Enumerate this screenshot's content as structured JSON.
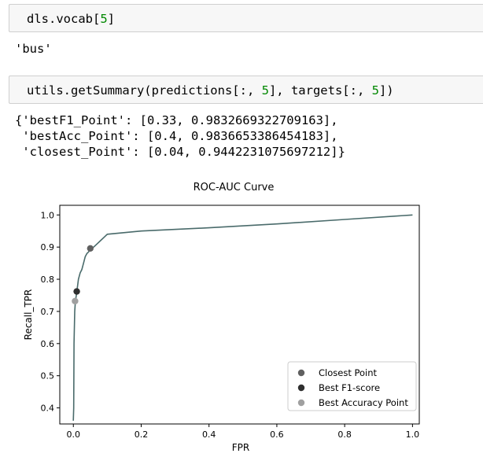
{
  "cells": [
    {
      "input_parts": [
        "dls.vocab[",
        "5",
        "]"
      ],
      "output": "'bus'"
    },
    {
      "input_parts": [
        "utils.getSummary(predictions[:, ",
        "5",
        "], targets[:, ",
        "5",
        "])"
      ],
      "output_lines": [
        "{'bestF1_Point': [0.33, 0.9832669322709163],",
        " 'bestAcc_Point': [0.4, 0.9836653386454183],",
        " 'closest_Point': [0.04, 0.9442231075697212]}"
      ]
    }
  ],
  "chart_data": {
    "type": "line",
    "title": "ROC-AUC Curve",
    "xlabel": "FPR",
    "ylabel": "Recall_TPR",
    "xlim": [
      -0.04,
      1.02
    ],
    "ylim": [
      0.35,
      1.03
    ],
    "xticks": [
      "0.0",
      "0.2",
      "0.4",
      "0.6",
      "0.8",
      "1.0"
    ],
    "yticks": [
      "0.4",
      "0.5",
      "0.6",
      "0.7",
      "0.8",
      "0.9",
      "1.0"
    ],
    "grid": false,
    "legend_placement": "bottom-right",
    "curve": {
      "color": "#4a6b6b",
      "x": [
        0.0,
        0.001,
        0.002,
        0.004,
        0.006,
        0.01,
        0.015,
        0.02,
        0.025,
        0.03,
        0.035,
        0.04,
        0.045,
        0.05,
        0.055,
        0.06,
        0.07,
        0.08,
        0.09,
        0.1,
        0.2,
        0.4,
        0.6,
        0.8,
        1.0
      ],
      "y": [
        0.36,
        0.4,
        0.6,
        0.7,
        0.73,
        0.76,
        0.8,
        0.82,
        0.83,
        0.85,
        0.87,
        0.88,
        0.885,
        0.895,
        0.898,
        0.9,
        0.91,
        0.92,
        0.93,
        0.94,
        0.95,
        0.96,
        0.972,
        0.986,
        1.0
      ]
    },
    "points": [
      {
        "name": "Closest Point",
        "x": 0.05,
        "y": 0.896,
        "color": "#606060"
      },
      {
        "name": "Best F1-score",
        "x": 0.01,
        "y": 0.762,
        "color": "#2f2f2f"
      },
      {
        "name": "Best Accuracy Point",
        "x": 0.005,
        "y": 0.732,
        "color": "#a0a0a0"
      }
    ]
  }
}
